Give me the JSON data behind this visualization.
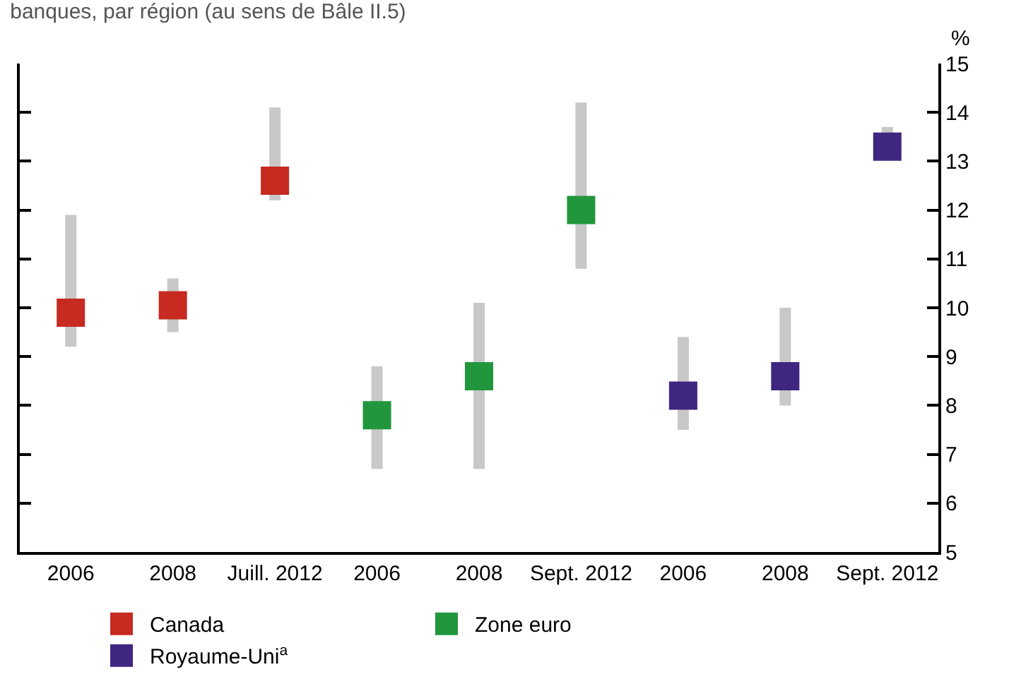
{
  "chart_data": {
    "type": "scatter",
    "title": "banques, par région (au sens de Bâle II.5)",
    "ylabel": "%",
    "categories": [
      "2006",
      "2008",
      "Juill. 2012",
      "2006",
      "2008",
      "Sept. 2012",
      "2006",
      "2008",
      "Sept. 2012"
    ],
    "series": [
      {
        "name": "Canada",
        "color": "#c62a21",
        "values": [
          9.9,
          10.05,
          12.6,
          null,
          null,
          null,
          null,
          null,
          null
        ],
        "errors": [
          [
            9.2,
            11.9
          ],
          [
            9.5,
            10.6
          ],
          [
            12.2,
            14.1
          ],
          null,
          null,
          null,
          null,
          null,
          null
        ]
      },
      {
        "name": "Zone euro",
        "color": "#21963c",
        "values": [
          null,
          null,
          null,
          7.8,
          8.6,
          12.0,
          null,
          null,
          null
        ],
        "errors": [
          null,
          null,
          null,
          [
            6.7,
            8.8
          ],
          [
            6.7,
            10.1
          ],
          [
            10.8,
            14.2
          ],
          null,
          null,
          null
        ]
      },
      {
        "name": "Royaume-Uni$^{a}$",
        "color": "#3f2680",
        "values": [
          null,
          null,
          null,
          null,
          null,
          null,
          8.2,
          8.6,
          13.3
        ],
        "errors": [
          null,
          null,
          null,
          null,
          null,
          null,
          [
            7.5,
            9.4
          ],
          [
            8.0,
            10.0
          ],
          [
            13.3,
            13.7
          ]
        ]
      }
    ],
    "ylim": [
      5,
      15
    ],
    "yticks": [
      5,
      6,
      7,
      8,
      9,
      10,
      11,
      12,
      13,
      14,
      15
    ],
    "marker": "square",
    "legend": "bottom",
    "grid": false
  }
}
